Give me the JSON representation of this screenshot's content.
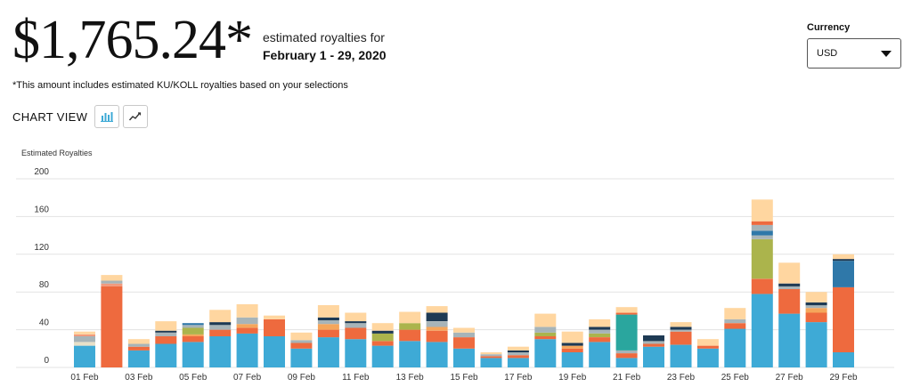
{
  "header": {
    "amount": "$1,765.24*",
    "caption": "estimated royalties for",
    "period": "February 1 - 29, 2020",
    "note": "*This amount includes estimated KU/KOLL royalties based on your selections"
  },
  "chart_view": {
    "label": "CHART VIEW",
    "bar_icon": "bar-chart-icon",
    "line_icon": "line-chart-icon"
  },
  "currency": {
    "label": "Currency",
    "value": "USD"
  },
  "colors": {
    "blue": "#3eaad6",
    "orange": "#ee6a3e",
    "peach": "#ffd6a0",
    "gray": "#a7b4b8",
    "light_orange": "#f5a65b",
    "olive": "#abb44c",
    "navy": "#1e3a54",
    "teal": "#2aa69e",
    "steel": "#2f78a9",
    "salmon": "#f19a7d",
    "pale": "#e8e0c8"
  },
  "chart_data": {
    "type": "bar",
    "stacked": true,
    "ylabel": "Estimated Royalties",
    "ylim": [
      0,
      200
    ],
    "yticks": [
      0,
      40,
      80,
      120,
      160,
      200
    ],
    "grid": true,
    "categories": [
      "01 Feb",
      "02 Feb",
      "03 Feb",
      "04 Feb",
      "05 Feb",
      "06 Feb",
      "07 Feb",
      "08 Feb",
      "09 Feb",
      "10 Feb",
      "11 Feb",
      "12 Feb",
      "13 Feb",
      "14 Feb",
      "15 Feb",
      "16 Feb",
      "17 Feb",
      "18 Feb",
      "19 Feb",
      "20 Feb",
      "21 Feb",
      "22 Feb",
      "23 Feb",
      "24 Feb",
      "25 Feb",
      "26 Feb",
      "27 Feb",
      "28 Feb",
      "29 Feb"
    ],
    "tick_labels": [
      "01 Feb",
      "03 Feb",
      "05 Feb",
      "07 Feb",
      "09 Feb",
      "11 Feb",
      "13 Feb",
      "15 Feb",
      "17 Feb",
      "19 Feb",
      "21 Feb",
      "23 Feb",
      "25 Feb",
      "27 Feb",
      "29 Feb"
    ],
    "stacks": [
      [
        {
          "c": "blue",
          "v": 23
        },
        {
          "c": "pale",
          "v": 4
        },
        {
          "c": "gray",
          "v": 6
        },
        {
          "c": "salmon",
          "v": 2
        },
        {
          "c": "peach",
          "v": 3
        }
      ],
      [
        {
          "c": "orange",
          "v": 86
        },
        {
          "c": "salmon",
          "v": 3
        },
        {
          "c": "gray",
          "v": 3
        },
        {
          "c": "peach",
          "v": 6
        }
      ],
      [
        {
          "c": "blue",
          "v": 18
        },
        {
          "c": "orange",
          "v": 4
        },
        {
          "c": "gray",
          "v": 3
        },
        {
          "c": "peach",
          "v": 5
        }
      ],
      [
        {
          "c": "blue",
          "v": 25
        },
        {
          "c": "orange",
          "v": 8
        },
        {
          "c": "gray",
          "v": 4
        },
        {
          "c": "navy",
          "v": 2
        },
        {
          "c": "peach",
          "v": 10
        }
      ],
      [
        {
          "c": "blue",
          "v": 27
        },
        {
          "c": "orange",
          "v": 6
        },
        {
          "c": "light_orange",
          "v": 2
        },
        {
          "c": "olive",
          "v": 7
        },
        {
          "c": "gray",
          "v": 3
        },
        {
          "c": "steel",
          "v": 2
        }
      ],
      [
        {
          "c": "blue",
          "v": 33
        },
        {
          "c": "orange",
          "v": 7
        },
        {
          "c": "gray",
          "v": 5
        },
        {
          "c": "navy",
          "v": 3
        },
        {
          "c": "peach",
          "v": 13
        }
      ],
      [
        {
          "c": "blue",
          "v": 36
        },
        {
          "c": "orange",
          "v": 6
        },
        {
          "c": "light_orange",
          "v": 4
        },
        {
          "c": "gray",
          "v": 7
        },
        {
          "c": "peach",
          "v": 14
        }
      ],
      [
        {
          "c": "blue",
          "v": 33
        },
        {
          "c": "orange",
          "v": 18
        },
        {
          "c": "peach",
          "v": 4
        }
      ],
      [
        {
          "c": "blue",
          "v": 20
        },
        {
          "c": "orange",
          "v": 6
        },
        {
          "c": "gray",
          "v": 3
        },
        {
          "c": "peach",
          "v": 8
        }
      ],
      [
        {
          "c": "blue",
          "v": 32
        },
        {
          "c": "orange",
          "v": 8
        },
        {
          "c": "light_orange",
          "v": 6
        },
        {
          "c": "gray",
          "v": 4
        },
        {
          "c": "navy",
          "v": 3
        },
        {
          "c": "peach",
          "v": 13
        }
      ],
      [
        {
          "c": "blue",
          "v": 30
        },
        {
          "c": "orange",
          "v": 12
        },
        {
          "c": "gray",
          "v": 5
        },
        {
          "c": "navy",
          "v": 2
        },
        {
          "c": "peach",
          "v": 9
        }
      ],
      [
        {
          "c": "blue",
          "v": 23
        },
        {
          "c": "orange",
          "v": 5
        },
        {
          "c": "olive",
          "v": 8
        },
        {
          "c": "navy",
          "v": 3
        },
        {
          "c": "peach",
          "v": 8
        }
      ],
      [
        {
          "c": "blue",
          "v": 28
        },
        {
          "c": "orange",
          "v": 12
        },
        {
          "c": "olive",
          "v": 7
        },
        {
          "c": "peach",
          "v": 12
        }
      ],
      [
        {
          "c": "blue",
          "v": 27
        },
        {
          "c": "orange",
          "v": 12
        },
        {
          "c": "light_orange",
          "v": 4
        },
        {
          "c": "gray",
          "v": 6
        },
        {
          "c": "navy",
          "v": 9
        },
        {
          "c": "peach",
          "v": 7
        }
      ],
      [
        {
          "c": "blue",
          "v": 20
        },
        {
          "c": "orange",
          "v": 12
        },
        {
          "c": "gray",
          "v": 5
        },
        {
          "c": "peach",
          "v": 5
        }
      ],
      [
        {
          "c": "blue",
          "v": 10
        },
        {
          "c": "orange",
          "v": 2
        },
        {
          "c": "gray",
          "v": 2
        },
        {
          "c": "peach",
          "v": 2
        }
      ],
      [
        {
          "c": "blue",
          "v": 10
        },
        {
          "c": "orange",
          "v": 3
        },
        {
          "c": "gray",
          "v": 3
        },
        {
          "c": "navy",
          "v": 2
        },
        {
          "c": "peach",
          "v": 4
        }
      ],
      [
        {
          "c": "blue",
          "v": 30
        },
        {
          "c": "orange",
          "v": 3
        },
        {
          "c": "olive",
          "v": 4
        },
        {
          "c": "gray",
          "v": 6
        },
        {
          "c": "peach",
          "v": 14
        }
      ],
      [
        {
          "c": "blue",
          "v": 16
        },
        {
          "c": "orange",
          "v": 4
        },
        {
          "c": "light_orange",
          "v": 3
        },
        {
          "c": "navy",
          "v": 3
        },
        {
          "c": "peach",
          "v": 12
        }
      ],
      [
        {
          "c": "blue",
          "v": 27
        },
        {
          "c": "orange",
          "v": 5
        },
        {
          "c": "olive",
          "v": 4
        },
        {
          "c": "gray",
          "v": 4
        },
        {
          "c": "navy",
          "v": 3
        },
        {
          "c": "peach",
          "v": 8
        }
      ],
      [
        {
          "c": "blue",
          "v": 10
        },
        {
          "c": "orange",
          "v": 5
        },
        {
          "c": "gray",
          "v": 3
        },
        {
          "c": "teal",
          "v": 38
        },
        {
          "c": "orange",
          "v": 2
        },
        {
          "c": "peach",
          "v": 6
        }
      ],
      [
        {
          "c": "blue",
          "v": 22
        },
        {
          "c": "orange",
          "v": 3
        },
        {
          "c": "gray",
          "v": 3
        },
        {
          "c": "navy",
          "v": 6
        }
      ],
      [
        {
          "c": "blue",
          "v": 24
        },
        {
          "c": "orange",
          "v": 14
        },
        {
          "c": "gray",
          "v": 2
        },
        {
          "c": "navy",
          "v": 3
        },
        {
          "c": "peach",
          "v": 5
        }
      ],
      [
        {
          "c": "blue",
          "v": 20
        },
        {
          "c": "orange",
          "v": 3
        },
        {
          "c": "peach",
          "v": 7
        }
      ],
      [
        {
          "c": "blue",
          "v": 41
        },
        {
          "c": "orange",
          "v": 6
        },
        {
          "c": "gray",
          "v": 4
        },
        {
          "c": "peach",
          "v": 12
        }
      ],
      [
        {
          "c": "blue",
          "v": 78
        },
        {
          "c": "orange",
          "v": 16
        },
        {
          "c": "olive",
          "v": 42
        },
        {
          "c": "gray",
          "v": 4
        },
        {
          "c": "steel",
          "v": 5
        },
        {
          "c": "gray",
          "v": 6
        },
        {
          "c": "orange",
          "v": 4
        },
        {
          "c": "peach",
          "v": 23
        }
      ],
      [
        {
          "c": "blue",
          "v": 57
        },
        {
          "c": "orange",
          "v": 26
        },
        {
          "c": "gray",
          "v": 3
        },
        {
          "c": "navy",
          "v": 3
        },
        {
          "c": "peach",
          "v": 22
        }
      ],
      [
        {
          "c": "blue",
          "v": 48
        },
        {
          "c": "orange",
          "v": 10
        },
        {
          "c": "light_orange",
          "v": 5
        },
        {
          "c": "gray",
          "v": 3
        },
        {
          "c": "navy",
          "v": 3
        },
        {
          "c": "peach",
          "v": 11
        }
      ],
      [
        {
          "c": "blue",
          "v": 16
        },
        {
          "c": "orange",
          "v": 69
        },
        {
          "c": "steel",
          "v": 28
        },
        {
          "c": "navy",
          "v": 2
        },
        {
          "c": "peach",
          "v": 5
        }
      ]
    ]
  }
}
